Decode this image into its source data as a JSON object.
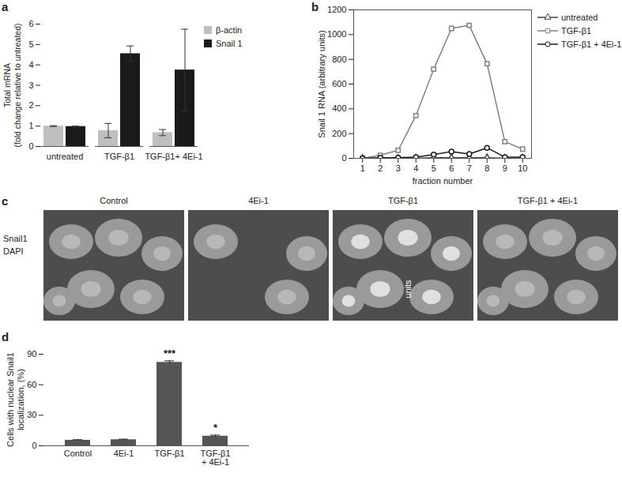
{
  "chart_data": [
    {
      "panel_label": "a",
      "type": "bar",
      "y_label": "Total mRNA\n(fold change relative to untreated)",
      "categories": [
        "untreated",
        "TGF-β1",
        "TGF-β1+ 4Ei-1"
      ],
      "series": [
        {
          "name": "β-actin",
          "color": "#bfbfbf",
          "values": [
            1,
            0.78,
            0.68
          ],
          "errors": [
            0.02,
            0.35,
            0.15
          ]
        },
        {
          "name": "Snail 1",
          "color": "#1a1a1a",
          "values": [
            0.98,
            4.55,
            3.75
          ],
          "errors": [
            0.02,
            0.38,
            2.0
          ]
        }
      ],
      "ylim": [
        0,
        6
      ],
      "yticks": [
        0,
        1,
        2,
        3,
        4,
        5,
        6
      ],
      "legend": "right"
    },
    {
      "panel_label": "b",
      "type": "line",
      "x_label": "fraction number",
      "y_label": "Snail 1 RNA (arbitrary units)",
      "x": [
        1,
        2,
        3,
        4,
        5,
        6,
        7,
        8,
        9,
        10
      ],
      "series": [
        {
          "name": "untreated",
          "color": "#404040",
          "marker": "triangle",
          "values": [
            0,
            0,
            0,
            0,
            5,
            5,
            5,
            5,
            0,
            0
          ]
        },
        {
          "name": "TGF-β1",
          "color": "#808080",
          "marker": "square",
          "values": [
            0,
            25,
            65,
            345,
            720,
            1050,
            1075,
            765,
            135,
            75
          ]
        },
        {
          "name": "TGF-β1 + 4Ei-1",
          "color": "#1a1a1a",
          "marker": "circle",
          "values": [
            0,
            5,
            5,
            10,
            30,
            55,
            35,
            85,
            10,
            10
          ]
        }
      ],
      "xlim": [
        0.5,
        10.5
      ],
      "xticks": [
        1,
        2,
        3,
        4,
        5,
        6,
        7,
        8,
        9,
        10
      ],
      "ylim": [
        0,
        1200
      ],
      "yticks": [
        0,
        200,
        400,
        600,
        800,
        1000,
        1200
      ],
      "legend": "right"
    },
    {
      "panel_label": "d",
      "type": "bar",
      "y_label": "Cells with nuclear Snail1\nlocalization, (%)",
      "categories": [
        "Control",
        "4Ei-1",
        "TGF-β1",
        "TGF-β1\n+ 4Ei-1"
      ],
      "values": [
        5.5,
        6,
        82,
        9.5
      ],
      "errors": [
        0.5,
        0.5,
        1.5,
        1
      ],
      "color": "#555555",
      "annotations": [
        {
          "category": "TGF-β1",
          "text": "***"
        },
        {
          "category": "TGF-β1\n+ 4Ei-1",
          "text": "*"
        }
      ],
      "ylim": [
        0,
        90
      ],
      "yticks": [
        0,
        30,
        60,
        90
      ]
    }
  ],
  "image_panel": {
    "panel_label": "c",
    "columns": [
      "Control",
      "4Ei-1",
      "TGF-β1",
      "TGF-β1 + 4Ei-1"
    ],
    "rows": [
      "Snail1",
      "DAPI"
    ],
    "annotation": "units"
  }
}
